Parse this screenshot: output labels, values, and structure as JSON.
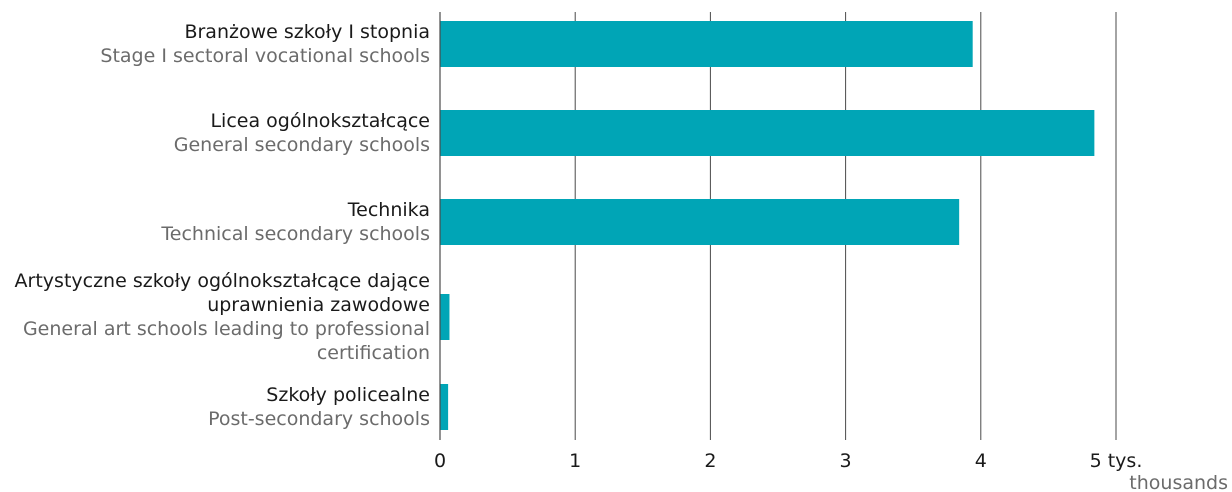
{
  "chart_data": {
    "type": "bar",
    "orientation": "horizontal",
    "categories": [
      {
        "label_pl": [
          "Branżowe szkoły I stopnia"
        ],
        "label_en": [
          "Stage I sectoral vocational schools"
        ]
      },
      {
        "label_pl": [
          "Licea ogólnokształcące"
        ],
        "label_en": [
          "General secondary schools"
        ]
      },
      {
        "label_pl": [
          "Technika"
        ],
        "label_en": [
          "Technical secondary schools"
        ]
      },
      {
        "label_pl": [
          "Artystyczne szkoły ogólnokształcące dające",
          "uprawnienia zawodowe"
        ],
        "label_en": [
          "General art schools leading to professional",
          "certification"
        ]
      },
      {
        "label_pl": [
          "Szkoły policealne"
        ],
        "label_en": [
          "Post-secondary schools"
        ]
      }
    ],
    "values": [
      3.94,
      4.84,
      3.84,
      0.07,
      0.06
    ],
    "xlim": [
      0,
      5
    ],
    "xticks": [
      "0",
      "1",
      "2",
      "3",
      "4",
      "5 tys."
    ],
    "xunit_en": "thousands",
    "grid": true,
    "bar_color": "#00a5b6"
  }
}
